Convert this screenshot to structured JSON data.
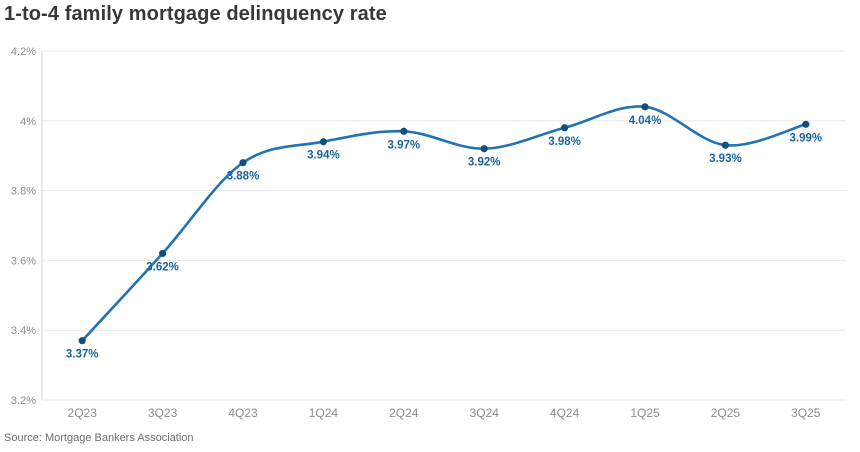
{
  "header": {
    "title": "1-to-4 family mortgage delinquency rate"
  },
  "footer": {
    "source": "Source: Mortgage Bankers Association"
  },
  "chart_data": {
    "type": "line",
    "title": "1-to-4 family mortgage delinquency rate",
    "categories": [
      "2Q23",
      "3Q23",
      "4Q23",
      "1Q24",
      "2Q24",
      "3Q24",
      "4Q24",
      "1Q25",
      "2Q25",
      "3Q25"
    ],
    "values": [
      3.37,
      3.62,
      3.88,
      3.94,
      3.97,
      3.92,
      3.98,
      4.04,
      3.93,
      3.99
    ],
    "point_labels": [
      "3.37%",
      "3.62%",
      "3.88%",
      "3.94%",
      "3.97%",
      "3.92%",
      "3.98%",
      "4.04%",
      "3.93%",
      "3.99%"
    ],
    "xlabel": "",
    "ylabel": "",
    "ylim": [
      3.2,
      4.2
    ],
    "yticks": [
      {
        "value": 3.2,
        "label": "3.2%"
      },
      {
        "value": 3.4,
        "label": "3.4%"
      },
      {
        "value": 3.6,
        "label": "3.6%"
      },
      {
        "value": 3.8,
        "label": "3.8%"
      },
      {
        "value": 4.0,
        "label": "4%"
      },
      {
        "value": 4.2,
        "label": "4.2%"
      }
    ],
    "grid": "horizontal",
    "legend": "none",
    "source": "Source: Mortgage Bankers Association",
    "colors": {
      "line": "#2173b2",
      "marker": "#134f7d",
      "point_label": "#1a659c",
      "grid": "#e9e9e9",
      "axis_line": "#d6d6d6",
      "tick_label": "#8c8c8c",
      "title": "#383838",
      "source": "#6f6f6f",
      "background": "#ffffff"
    }
  }
}
